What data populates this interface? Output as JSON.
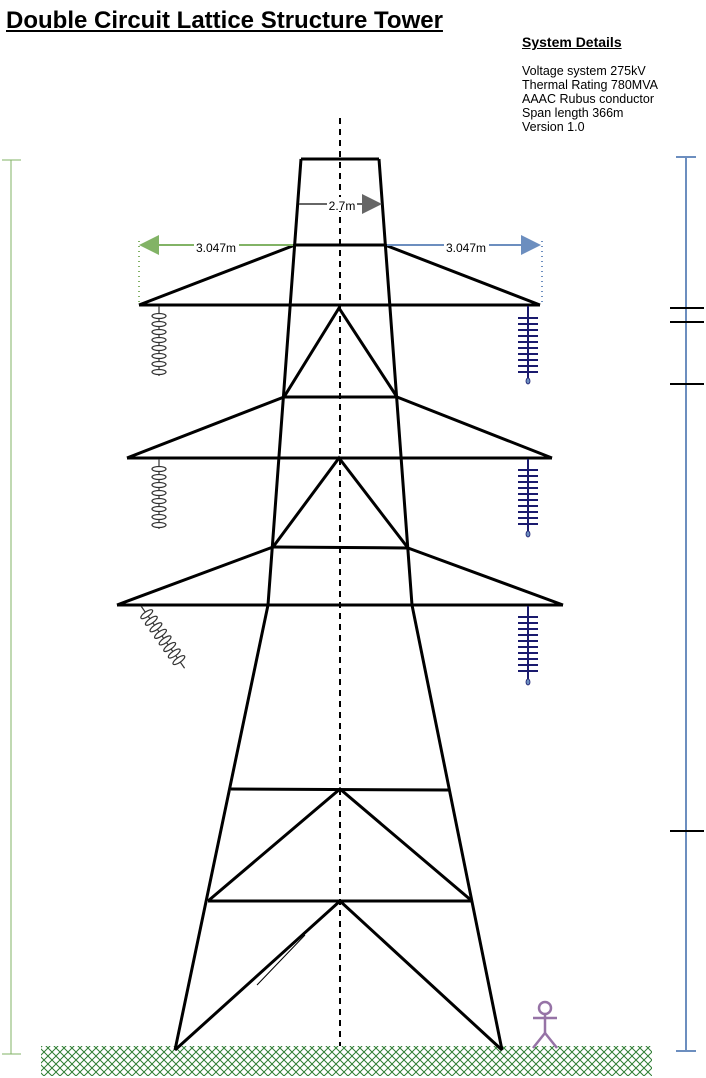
{
  "title": "Double Circuit Lattice Structure Tower",
  "system_details": {
    "heading": "System Details",
    "lines": [
      "Voltage system 275kV",
      "Thermal Rating 780MVA",
      "AAAC Rubus conductor",
      "Span length 366m",
      "Version 1.0"
    ]
  },
  "dimensions": {
    "top_width": "2.7m",
    "left_crossarm": "3.047m",
    "right_crossarm": "3.047m"
  },
  "colors": {
    "structure": "#000000",
    "left_dimension": "#82b366",
    "right_dimension": "#6c8ebf",
    "top_dimension": "#666666",
    "insulator_left": "#333333",
    "insulator_right": "#1a1a6e",
    "ground": "#2e7d32",
    "person": "#9673a6"
  },
  "icons": {
    "person": "person-figure-icon",
    "ground": "ground-hatch-icon"
  }
}
